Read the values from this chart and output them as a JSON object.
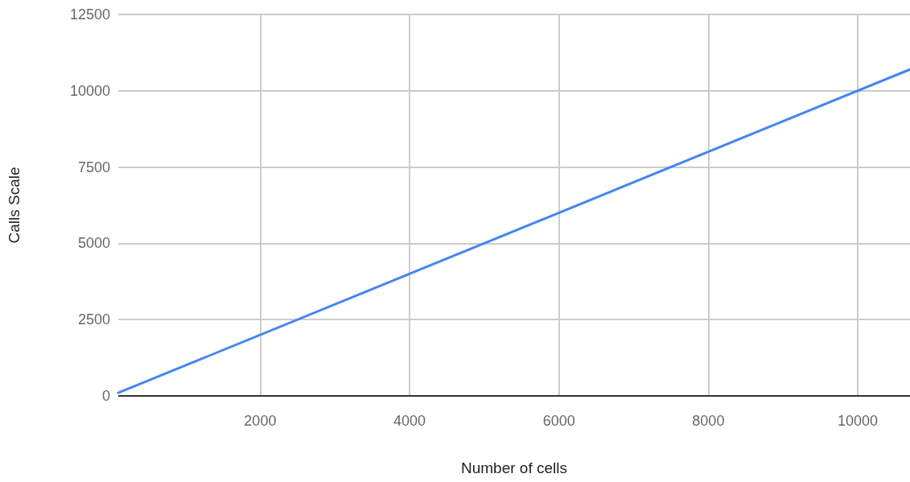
{
  "chart_data": {
    "type": "line",
    "xlabel": "Number of cells",
    "ylabel": "Calls Scale",
    "x": [
      100,
      10700
    ],
    "series": [
      {
        "color": "#4285f4",
        "values": [
          100,
          10700
        ]
      }
    ],
    "xlim": [
      100,
      10700
    ],
    "xticks": [
      2000,
      4000,
      6000,
      8000,
      10000
    ],
    "ylim": [
      0,
      12500
    ],
    "yticks": [
      0,
      2500,
      5000,
      7500,
      10000,
      12500
    ],
    "grid": true,
    "marker": "none",
    "line_style": "solid"
  }
}
